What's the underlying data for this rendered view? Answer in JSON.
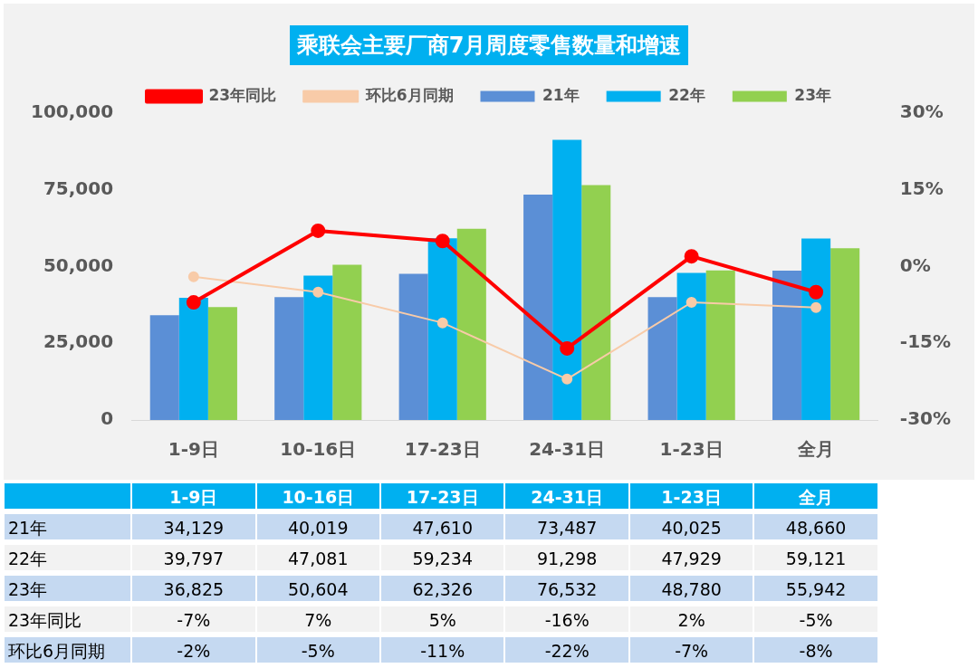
{
  "chart_data": {
    "type": "bar",
    "title": "乘联会主要厂商7月周度零售数量和增速",
    "categories": [
      "1-9日",
      "10-16日",
      "17-23日",
      "24-31日",
      "1-23日",
      "全月"
    ],
    "series": [
      {
        "name": "21年",
        "color": "#5b8fd6",
        "values": [
          34129,
          40019,
          47610,
          73487,
          40025,
          48660
        ],
        "value_labels": [
          "34,129",
          "40,019",
          "47,610",
          "73,487",
          "40,025",
          "48,660"
        ]
      },
      {
        "name": "22年",
        "color": "#00b0f0",
        "values": [
          39797,
          47081,
          59234,
          91298,
          47929,
          59121
        ],
        "value_labels": [
          "39,797",
          "47,081",
          "59,234",
          "91,298",
          "47,929",
          "59,121"
        ]
      },
      {
        "name": "23年",
        "color": "#92d050",
        "values": [
          36825,
          50604,
          62326,
          76532,
          48780,
          55942
        ],
        "value_labels": [
          "36,825",
          "50,604",
          "62,326",
          "76,532",
          "48,780",
          "55,942"
        ]
      },
      {
        "name": "23年同比",
        "type": "line",
        "axis": "y2",
        "color": "#ff0000",
        "values": [
          -7,
          7,
          5,
          -16,
          2,
          -5
        ],
        "value_labels": [
          "-7%",
          "7%",
          "5%",
          "-16%",
          "2%",
          "-5%"
        ]
      },
      {
        "name": "环比6月同期",
        "type": "line",
        "axis": "y2",
        "color": "#f8cba8",
        "values": [
          -2,
          -5,
          -11,
          -22,
          -7,
          -8
        ],
        "value_labels": [
          "-2%",
          "-5%",
          "-11%",
          "-22%",
          "-7%",
          "-8%"
        ]
      }
    ],
    "ylim": [
      0,
      100000
    ],
    "yticks": [
      {
        "value": 0,
        "label": "0"
      },
      {
        "value": 25000,
        "label": "25,000"
      },
      {
        "value": 50000,
        "label": "50,000"
      },
      {
        "value": 75000,
        "label": "75,000"
      },
      {
        "value": 100000,
        "label": "100,000"
      }
    ],
    "y2lim": [
      -30,
      30
    ],
    "y2ticks": [
      {
        "value": -30,
        "label": "-30%"
      },
      {
        "value": -15,
        "label": "-15%"
      },
      {
        "value": 0,
        "label": "0%"
      },
      {
        "value": 15,
        "label": "15%"
      },
      {
        "value": 30,
        "label": "30%"
      }
    ],
    "legend": "top",
    "marker": "circle",
    "line_style": "solid"
  }
}
